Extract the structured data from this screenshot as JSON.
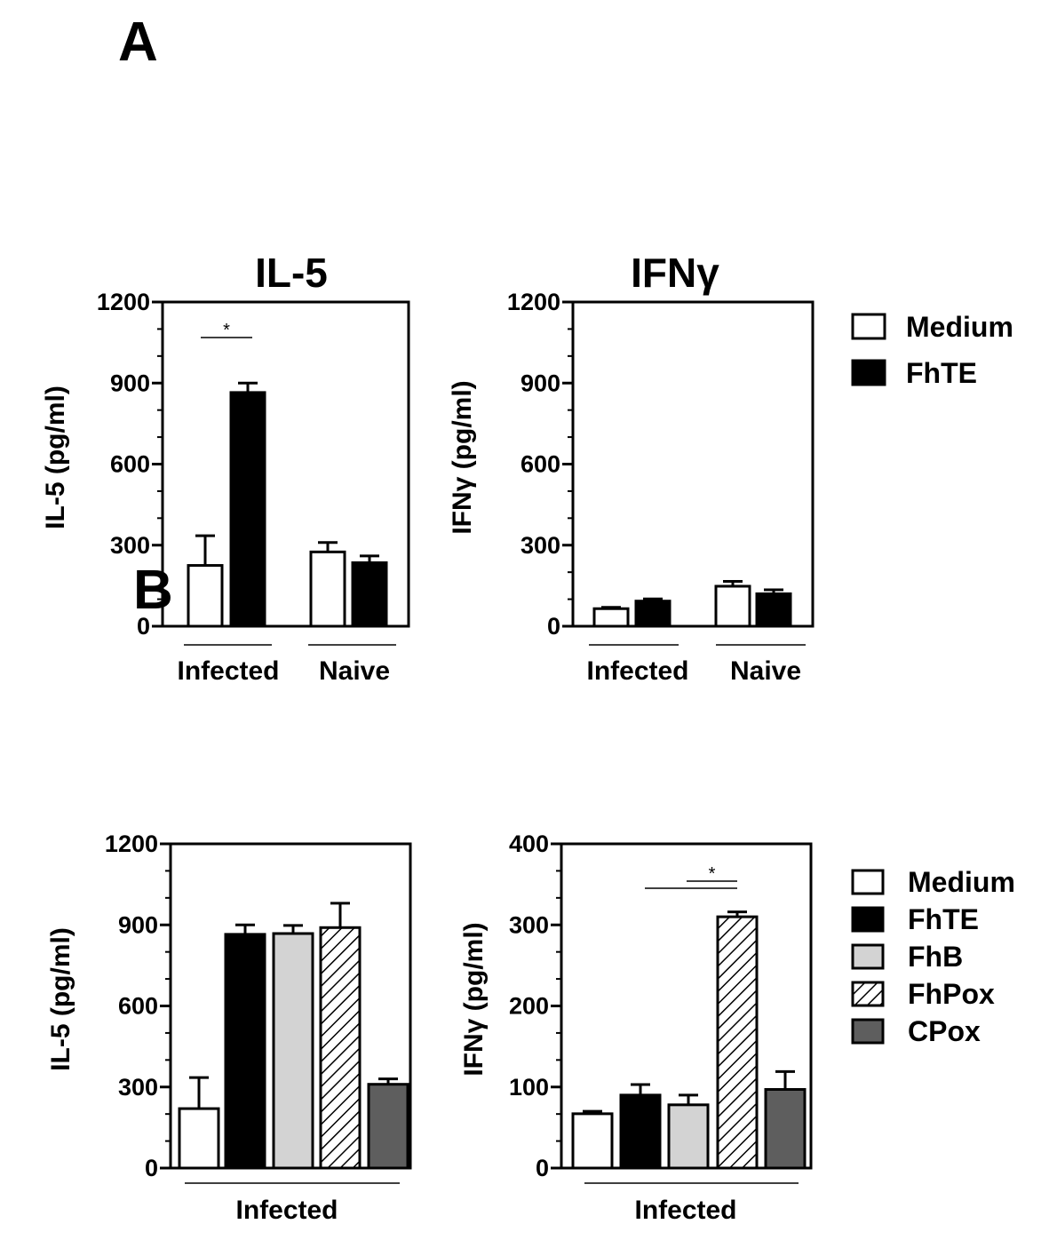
{
  "panels": [
    {
      "label": "A"
    },
    {
      "label": "B"
    }
  ],
  "colors": {
    "Medium": "#ffffff",
    "FhTE": "#000000",
    "FhB": "#d3d3d3",
    "FhPox": "hatch",
    "CPox": "#5e5e5e"
  },
  "chart_data": [
    {
      "panel": "A",
      "type": "bar",
      "title": "IL-5",
      "ylabel": "IL-5 (pg/ml)",
      "ylim": [
        0,
        1200
      ],
      "yticks": [
        "0",
        "300",
        "600",
        "900",
        "1200"
      ],
      "groups": [
        "Infected",
        "Naive"
      ],
      "series": [
        {
          "name": "Medium",
          "values": [
            225,
            275
          ],
          "errors": [
            110,
            35
          ]
        },
        {
          "name": "FhTE",
          "values": [
            865,
            235
          ],
          "errors": [
            35,
            25
          ]
        }
      ],
      "significance": [
        {
          "label": "*",
          "between": [
            "Infected:Medium",
            "Infected:FhTE"
          ]
        }
      ]
    },
    {
      "panel": "A",
      "type": "bar",
      "title": "IFNγ",
      "ylabel": "IFNγ (pg/ml)",
      "ylim": [
        0,
        1200
      ],
      "yticks": [
        "0",
        "300",
        "600",
        "900",
        "1200"
      ],
      "groups": [
        "Infected",
        "Naive"
      ],
      "series": [
        {
          "name": "Medium",
          "values": [
            65,
            148
          ],
          "errors": [
            5,
            18
          ]
        },
        {
          "name": "FhTE",
          "values": [
            93,
            120
          ],
          "errors": [
            8,
            15
          ]
        }
      ],
      "legend": [
        "Medium",
        "FhTE"
      ]
    },
    {
      "panel": "B",
      "type": "bar",
      "ylabel": "IL-5 (pg/ml)",
      "ylim": [
        0,
        1200
      ],
      "yticks": [
        "0",
        "300",
        "600",
        "900",
        "1200"
      ],
      "groups": [
        "Infected"
      ],
      "series": [
        {
          "name": "Medium",
          "values": [
            220
          ],
          "errors": [
            115
          ]
        },
        {
          "name": "FhTE",
          "values": [
            865
          ],
          "errors": [
            35
          ]
        },
        {
          "name": "FhB",
          "values": [
            868
          ],
          "errors": [
            30
          ]
        },
        {
          "name": "FhPox",
          "values": [
            890
          ],
          "errors": [
            90
          ]
        },
        {
          "name": "CPox",
          "values": [
            310
          ],
          "errors": [
            20
          ]
        }
      ]
    },
    {
      "panel": "B",
      "type": "bar",
      "ylabel": "IFNγ (pg/ml)",
      "ylim": [
        0,
        400
      ],
      "yticks": [
        "0",
        "100",
        "200",
        "300",
        "400"
      ],
      "groups": [
        "Infected"
      ],
      "series": [
        {
          "name": "Medium",
          "values": [
            67
          ],
          "errors": [
            3
          ]
        },
        {
          "name": "FhTE",
          "values": [
            90
          ],
          "errors": [
            13
          ]
        },
        {
          "name": "FhB",
          "values": [
            78
          ],
          "errors": [
            12
          ]
        },
        {
          "name": "FhPox",
          "values": [
            310
          ],
          "errors": [
            6
          ]
        },
        {
          "name": "CPox",
          "values": [
            97
          ],
          "errors": [
            22
          ]
        }
      ],
      "significance": [
        {
          "label": "*",
          "between": [
            "FhTE..FhB",
            "FhPox"
          ]
        }
      ],
      "legend": [
        "Medium",
        "FhTE",
        "FhB",
        "FhPox",
        "CPox"
      ]
    }
  ]
}
